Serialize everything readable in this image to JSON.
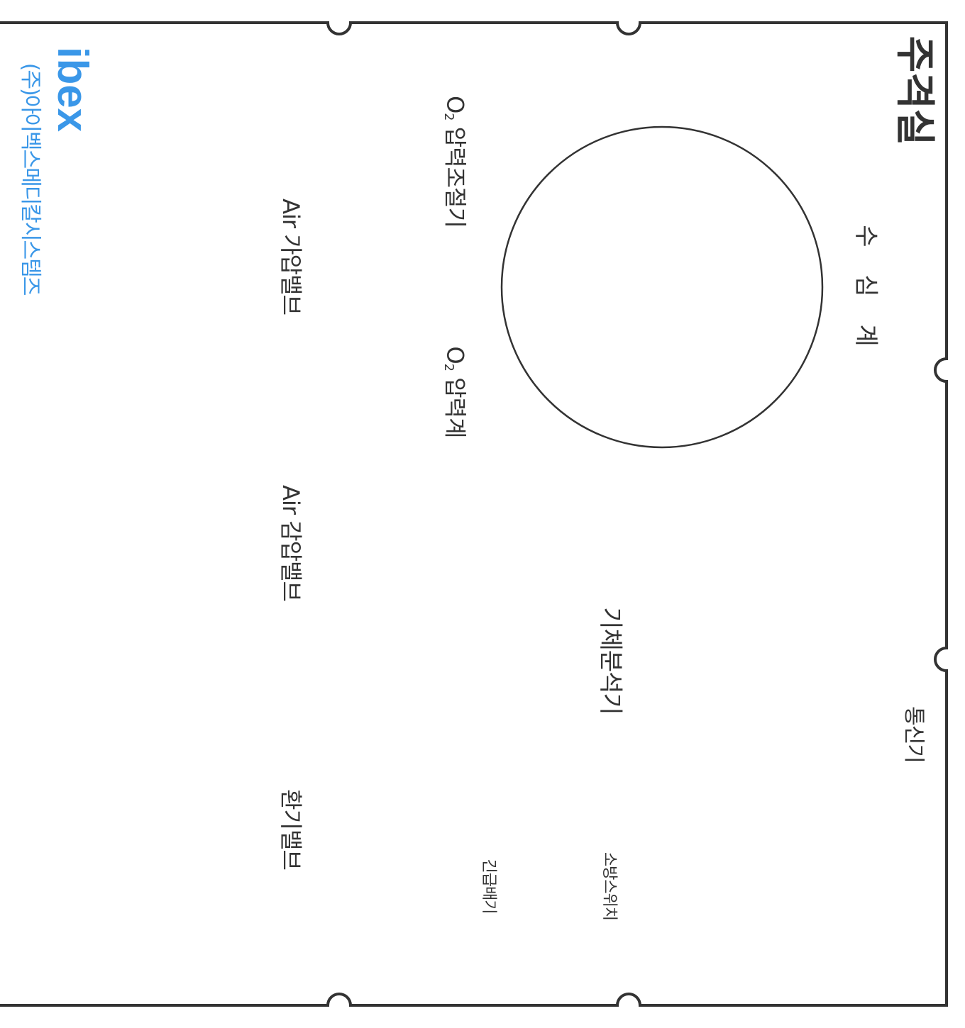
{
  "panel": {
    "title": "주격실",
    "border_color": "#333333"
  },
  "labels": {
    "depth_gauge": "수 심 계",
    "communicator": "통신기",
    "gas_analyzer": "기체분석기",
    "o2_regulator_main": "O",
    "o2_regulator_sub": "2",
    "o2_regulator_rest": " 압력조절기",
    "o2_gauge_main": "O",
    "o2_gauge_sub": "2",
    "o2_gauge_rest": " 압력계",
    "air_inlet_valve": "Air 가압밸브",
    "air_exhaust_valve": "Air 감압밸브",
    "vent_valve": "환기밸브",
    "fire_switch": "소방스위치",
    "emergency_vent": "긴급배기"
  },
  "brand": {
    "logo": "ibex",
    "company": "(주)아이벡스메디칼시스템즈",
    "color": "#3a97e8"
  }
}
